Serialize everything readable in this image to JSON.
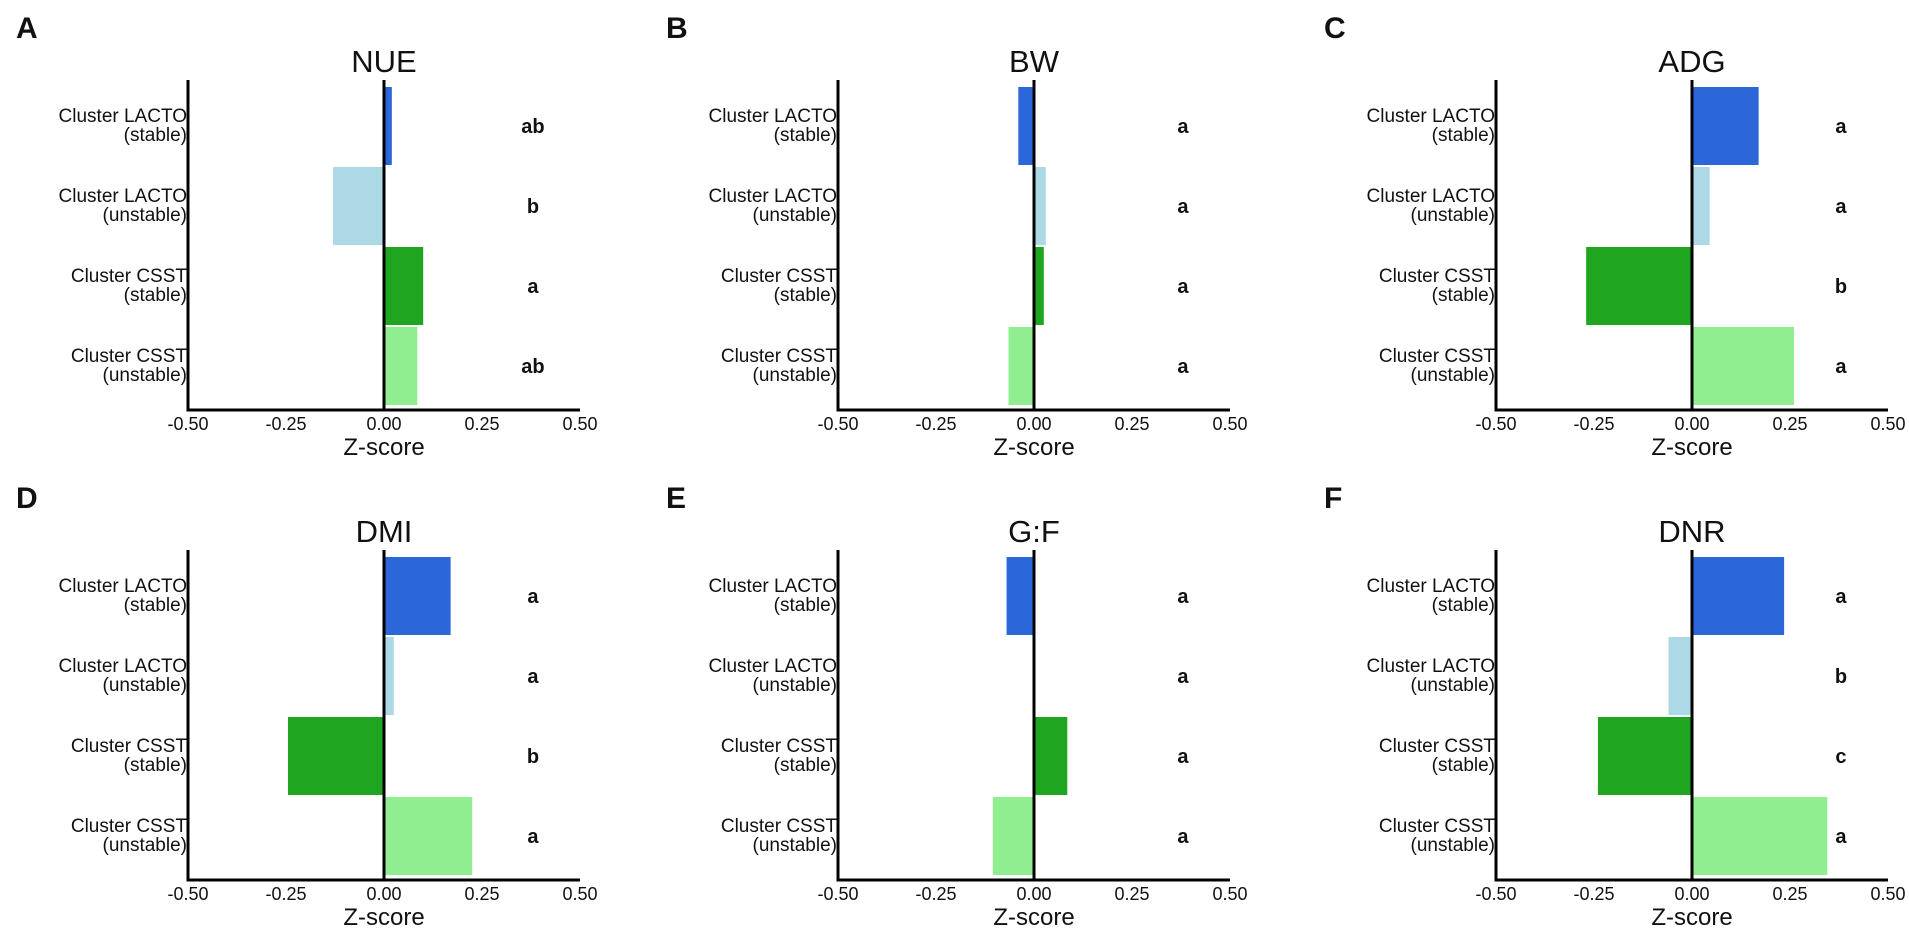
{
  "chart_data": [
    {
      "panel": "A",
      "type": "bar",
      "orientation": "horizontal",
      "title": "NUE",
      "xlabel": "Z-score",
      "ylabel": "",
      "xlim": [
        -0.5,
        0.5
      ],
      "xticks": [
        "-0.50",
        "-0.25",
        "0.00",
        "0.25",
        "0.50"
      ],
      "categories": [
        {
          "line1": "Cluster LACTO",
          "line2": "(stable)"
        },
        {
          "line1": "Cluster LACTO",
          "line2": "(unstable)"
        },
        {
          "line1": "Cluster CSST",
          "line2": "(stable)"
        },
        {
          "line1": "Cluster CSST",
          "line2": "(unstable)"
        }
      ],
      "values": [
        0.02,
        -0.13,
        0.1,
        0.085
      ],
      "colors": [
        "#2b67d8",
        "#add8e6",
        "#1fa51f",
        "#90ee90"
      ],
      "significance": [
        "ab",
        "b",
        "a",
        "ab"
      ]
    },
    {
      "panel": "B",
      "type": "bar",
      "orientation": "horizontal",
      "title": "BW",
      "xlabel": "Z-score",
      "ylabel": "",
      "xlim": [
        -0.5,
        0.5
      ],
      "xticks": [
        "-0.50",
        "-0.25",
        "0.00",
        "0.25",
        "0.50"
      ],
      "categories": [
        {
          "line1": "Cluster LACTO",
          "line2": "(stable)"
        },
        {
          "line1": "Cluster LACTO",
          "line2": "(unstable)"
        },
        {
          "line1": "Cluster CSST",
          "line2": "(stable)"
        },
        {
          "line1": "Cluster CSST",
          "line2": "(unstable)"
        }
      ],
      "values": [
        -0.04,
        0.03,
        0.025,
        -0.065
      ],
      "colors": [
        "#2b67d8",
        "#add8e6",
        "#1fa51f",
        "#90ee90"
      ],
      "significance": [
        "a",
        "a",
        "a",
        "a"
      ]
    },
    {
      "panel": "C",
      "type": "bar",
      "orientation": "horizontal",
      "title": "ADG",
      "xlabel": "Z-score",
      "ylabel": "",
      "xlim": [
        -0.5,
        0.5
      ],
      "xticks": [
        "-0.50",
        "-0.25",
        "0.00",
        "0.25",
        "0.50"
      ],
      "categories": [
        {
          "line1": "Cluster LACTO",
          "line2": "(stable)"
        },
        {
          "line1": "Cluster LACTO",
          "line2": "(unstable)"
        },
        {
          "line1": "Cluster CSST",
          "line2": "(stable)"
        },
        {
          "line1": "Cluster CSST",
          "line2": "(unstable)"
        }
      ],
      "values": [
        0.17,
        0.045,
        -0.27,
        0.26
      ],
      "colors": [
        "#2b67d8",
        "#add8e6",
        "#1fa51f",
        "#90ee90"
      ],
      "significance": [
        "a",
        "a",
        "b",
        "a"
      ]
    },
    {
      "panel": "D",
      "type": "bar",
      "orientation": "horizontal",
      "title": "DMI",
      "xlabel": "Z-score",
      "ylabel": "",
      "xlim": [
        -0.5,
        0.5
      ],
      "xticks": [
        "-0.50",
        "-0.25",
        "0.00",
        "0.25",
        "0.50"
      ],
      "categories": [
        {
          "line1": "Cluster LACTO",
          "line2": "(stable)"
        },
        {
          "line1": "Cluster LACTO",
          "line2": "(unstable)"
        },
        {
          "line1": "Cluster CSST",
          "line2": "(stable)"
        },
        {
          "line1": "Cluster CSST",
          "line2": "(unstable)"
        }
      ],
      "values": [
        0.17,
        0.025,
        -0.245,
        0.225
      ],
      "colors": [
        "#2b67d8",
        "#add8e6",
        "#1fa51f",
        "#90ee90"
      ],
      "significance": [
        "a",
        "a",
        "b",
        "a"
      ]
    },
    {
      "panel": "E",
      "type": "bar",
      "orientation": "horizontal",
      "title": "G:F",
      "xlabel": "Z-score",
      "ylabel": "",
      "xlim": [
        -0.5,
        0.5
      ],
      "xticks": [
        "-0.50",
        "-0.25",
        "0.00",
        "0.25",
        "0.50"
      ],
      "categories": [
        {
          "line1": "Cluster LACTO",
          "line2": "(stable)"
        },
        {
          "line1": "Cluster LACTO",
          "line2": "(unstable)"
        },
        {
          "line1": "Cluster CSST",
          "line2": "(stable)"
        },
        {
          "line1": "Cluster CSST",
          "line2": "(unstable)"
        }
      ],
      "values": [
        -0.07,
        0.0,
        0.085,
        -0.105
      ],
      "colors": [
        "#2b67d8",
        "#add8e6",
        "#1fa51f",
        "#90ee90"
      ],
      "significance": [
        "a",
        "a",
        "a",
        "a"
      ]
    },
    {
      "panel": "F",
      "type": "bar",
      "orientation": "horizontal",
      "title": "DNR",
      "xlabel": "Z-score",
      "ylabel": "",
      "xlim": [
        -0.5,
        0.5
      ],
      "xticks": [
        "-0.50",
        "-0.25",
        "0.00",
        "0.25",
        "0.50"
      ],
      "categories": [
        {
          "line1": "Cluster LACTO",
          "line2": "(stable)"
        },
        {
          "line1": "Cluster LACTO",
          "line2": "(unstable)"
        },
        {
          "line1": "Cluster CSST",
          "line2": "(stable)"
        },
        {
          "line1": "Cluster CSST",
          "line2": "(unstable)"
        }
      ],
      "values": [
        0.235,
        -0.06,
        -0.24,
        0.345
      ],
      "colors": [
        "#2b67d8",
        "#add8e6",
        "#1fa51f",
        "#90ee90"
      ],
      "significance": [
        "a",
        "b",
        "c",
        "a"
      ]
    }
  ]
}
